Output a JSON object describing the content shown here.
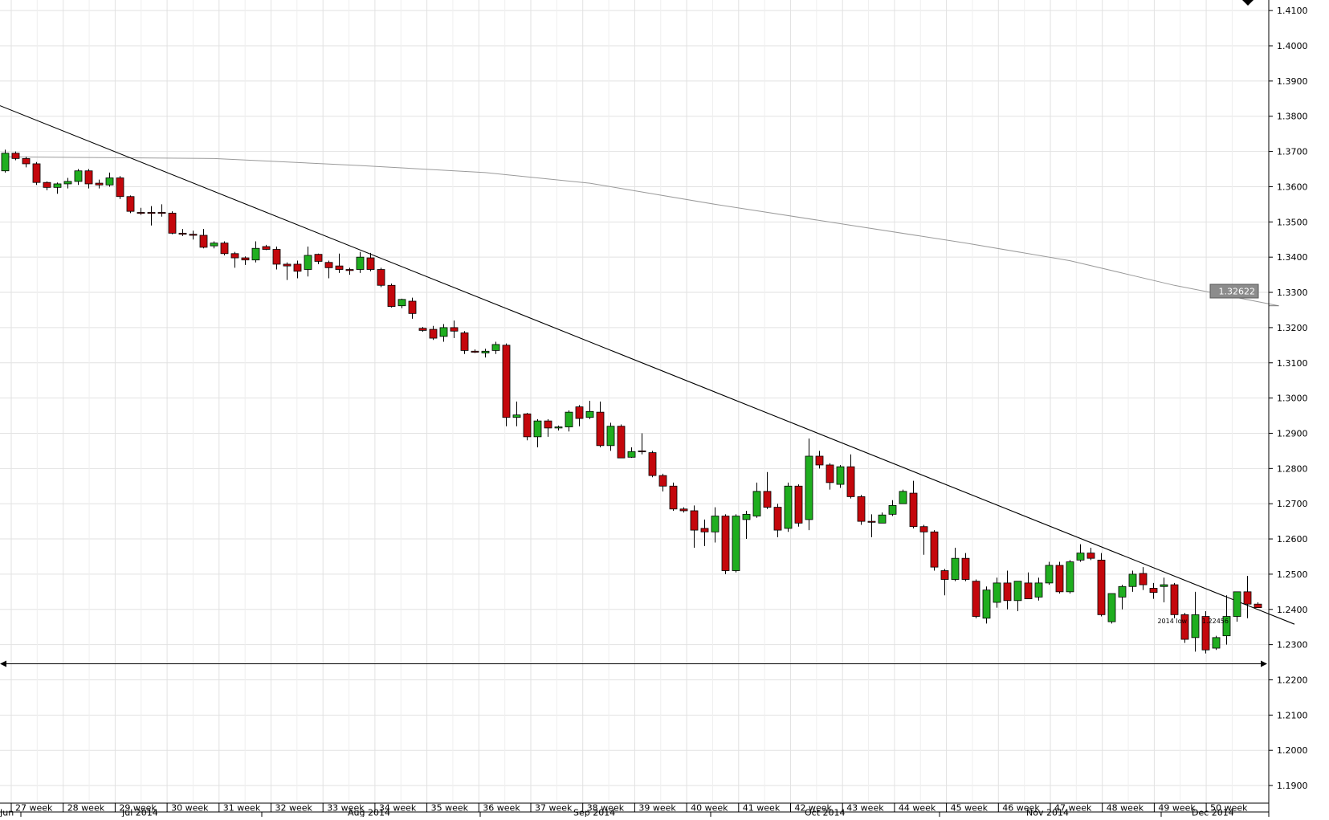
{
  "chart_data": {
    "type": "candlestick",
    "instrument_price_tag": "1.32622",
    "y_axis": {
      "min": 1.185,
      "max": 1.413,
      "ticks": [
        "1.1900",
        "1.2000",
        "1.2100",
        "1.2200",
        "1.2300",
        "1.2400",
        "1.2500",
        "1.2600",
        "1.2700",
        "1.2800",
        "1.2900",
        "1.3000",
        "1.3100",
        "1.3200",
        "1.3300",
        "1.3400",
        "1.3500",
        "1.3600",
        "1.3700",
        "1.3800",
        "1.3900",
        "1.4000",
        "1.4100"
      ]
    },
    "x_axis": {
      "week_labels": [
        "27 week",
        "28 week",
        "29 week",
        "30 week",
        "31 week",
        "32 week",
        "33 week",
        "34 week",
        "35 week",
        "36 week",
        "37 week",
        "38 week",
        "39 week",
        "40 week",
        "41 week",
        "42 week",
        "43 week",
        "44 week",
        "45 week",
        "46 week",
        "47 week",
        "48 week",
        "49 week",
        "50 week"
      ],
      "month_labels": [
        "Jun",
        "Jul 2014",
        "Aug 2014",
        "Sep 2014",
        "Oct 2014",
        "Nov 2014",
        "Dec 2014"
      ]
    },
    "candles": [
      {
        "o": 1.3645,
        "h": 1.3705,
        "l": 1.364,
        "c": 1.3695
      },
      {
        "o": 1.3695,
        "h": 1.37,
        "l": 1.3675,
        "c": 1.368
      },
      {
        "o": 1.368,
        "h": 1.3685,
        "l": 1.3655,
        "c": 1.3665
      },
      {
        "o": 1.3665,
        "h": 1.367,
        "l": 1.3605,
        "c": 1.3612
      },
      {
        "o": 1.3612,
        "h": 1.3615,
        "l": 1.359,
        "c": 1.3598
      },
      {
        "o": 1.3598,
        "h": 1.3612,
        "l": 1.358,
        "c": 1.3608
      },
      {
        "o": 1.3608,
        "h": 1.3625,
        "l": 1.3595,
        "c": 1.3615
      },
      {
        "o": 1.3615,
        "h": 1.365,
        "l": 1.3605,
        "c": 1.3645
      },
      {
        "o": 1.3645,
        "h": 1.365,
        "l": 1.3595,
        "c": 1.3608
      },
      {
        "o": 1.361,
        "h": 1.362,
        "l": 1.3595,
        "c": 1.3605
      },
      {
        "o": 1.3605,
        "h": 1.364,
        "l": 1.36,
        "c": 1.3625
      },
      {
        "o": 1.3625,
        "h": 1.363,
        "l": 1.3565,
        "c": 1.3572
      },
      {
        "o": 1.3572,
        "h": 1.3575,
        "l": 1.3525,
        "c": 1.353
      },
      {
        "o": 1.3527,
        "h": 1.354,
        "l": 1.352,
        "c": 1.3525
      },
      {
        "o": 1.3527,
        "h": 1.3545,
        "l": 1.349,
        "c": 1.3525
      },
      {
        "o": 1.3527,
        "h": 1.355,
        "l": 1.3515,
        "c": 1.3525
      },
      {
        "o": 1.3525,
        "h": 1.353,
        "l": 1.3465,
        "c": 1.3468
      },
      {
        "o": 1.3468,
        "h": 1.348,
        "l": 1.346,
        "c": 1.3465
      },
      {
        "o": 1.3465,
        "h": 1.3475,
        "l": 1.345,
        "c": 1.3462
      },
      {
        "o": 1.3462,
        "h": 1.348,
        "l": 1.3425,
        "c": 1.3428
      },
      {
        "o": 1.3432,
        "h": 1.3445,
        "l": 1.3425,
        "c": 1.344
      },
      {
        "o": 1.344,
        "h": 1.3445,
        "l": 1.3405,
        "c": 1.341
      },
      {
        "o": 1.341,
        "h": 1.3415,
        "l": 1.337,
        "c": 1.3398
      },
      {
        "o": 1.3398,
        "h": 1.3402,
        "l": 1.3378,
        "c": 1.3392
      },
      {
        "o": 1.3392,
        "h": 1.3445,
        "l": 1.3385,
        "c": 1.3425
      },
      {
        "o": 1.343,
        "h": 1.3435,
        "l": 1.342,
        "c": 1.3422
      },
      {
        "o": 1.3422,
        "h": 1.343,
        "l": 1.3365,
        "c": 1.338
      },
      {
        "o": 1.338,
        "h": 1.3385,
        "l": 1.3335,
        "c": 1.3375
      },
      {
        "o": 1.338,
        "h": 1.339,
        "l": 1.334,
        "c": 1.336
      },
      {
        "o": 1.3365,
        "h": 1.343,
        "l": 1.3345,
        "c": 1.3405
      },
      {
        "o": 1.3408,
        "h": 1.341,
        "l": 1.338,
        "c": 1.3388
      },
      {
        "o": 1.3385,
        "h": 1.339,
        "l": 1.334,
        "c": 1.337
      },
      {
        "o": 1.3375,
        "h": 1.341,
        "l": 1.3355,
        "c": 1.3365
      },
      {
        "o": 1.3365,
        "h": 1.337,
        "l": 1.335,
        "c": 1.3362
      },
      {
        "o": 1.3365,
        "h": 1.3415,
        "l": 1.3355,
        "c": 1.34
      },
      {
        "o": 1.3398,
        "h": 1.3412,
        "l": 1.336,
        "c": 1.3365
      },
      {
        "o": 1.3365,
        "h": 1.337,
        "l": 1.3315,
        "c": 1.332
      },
      {
        "o": 1.332,
        "h": 1.3325,
        "l": 1.3257,
        "c": 1.326
      },
      {
        "o": 1.3262,
        "h": 1.3282,
        "l": 1.3255,
        "c": 1.328
      },
      {
        "o": 1.3275,
        "h": 1.3285,
        "l": 1.3225,
        "c": 1.324
      },
      {
        "o": 1.3198,
        "h": 1.3202,
        "l": 1.3188,
        "c": 1.3192
      },
      {
        "o": 1.3195,
        "h": 1.3205,
        "l": 1.3165,
        "c": 1.317
      },
      {
        "o": 1.3175,
        "h": 1.321,
        "l": 1.316,
        "c": 1.32
      },
      {
        "o": 1.32,
        "h": 1.322,
        "l": 1.317,
        "c": 1.319
      },
      {
        "o": 1.3185,
        "h": 1.319,
        "l": 1.3125,
        "c": 1.3135
      },
      {
        "o": 1.3133,
        "h": 1.3138,
        "l": 1.3128,
        "c": 1.313
      },
      {
        "o": 1.3128,
        "h": 1.314,
        "l": 1.3115,
        "c": 1.3133
      },
      {
        "o": 1.3135,
        "h": 1.316,
        "l": 1.3125,
        "c": 1.3152
      },
      {
        "o": 1.315,
        "h": 1.3155,
        "l": 1.292,
        "c": 1.2945
      },
      {
        "o": 1.2945,
        "h": 1.299,
        "l": 1.292,
        "c": 1.2952
      },
      {
        "o": 1.2955,
        "h": 1.2958,
        "l": 1.288,
        "c": 1.289
      },
      {
        "o": 1.289,
        "h": 1.294,
        "l": 1.286,
        "c": 1.2935
      },
      {
        "o": 1.2935,
        "h": 1.294,
        "l": 1.289,
        "c": 1.2915
      },
      {
        "o": 1.2915,
        "h": 1.2922,
        "l": 1.2908,
        "c": 1.2918
      },
      {
        "o": 1.2918,
        "h": 1.2965,
        "l": 1.2905,
        "c": 1.296
      },
      {
        "o": 1.2975,
        "h": 1.298,
        "l": 1.292,
        "c": 1.2942
      },
      {
        "o": 1.2945,
        "h": 1.2992,
        "l": 1.294,
        "c": 1.2962
      },
      {
        "o": 1.296,
        "h": 1.299,
        "l": 1.286,
        "c": 1.2865
      },
      {
        "o": 1.2865,
        "h": 1.293,
        "l": 1.285,
        "c": 1.292
      },
      {
        "o": 1.292,
        "h": 1.2925,
        "l": 1.283,
        "c": 1.283
      },
      {
        "o": 1.2832,
        "h": 1.286,
        "l": 1.283,
        "c": 1.2848
      },
      {
        "o": 1.285,
        "h": 1.29,
        "l": 1.284,
        "c": 1.2848
      },
      {
        "o": 1.2845,
        "h": 1.285,
        "l": 1.2775,
        "c": 1.278
      },
      {
        "o": 1.278,
        "h": 1.2785,
        "l": 1.2735,
        "c": 1.275
      },
      {
        "o": 1.275,
        "h": 1.276,
        "l": 1.268,
        "c": 1.2685
      },
      {
        "o": 1.2685,
        "h": 1.269,
        "l": 1.2675,
        "c": 1.268
      },
      {
        "o": 1.268,
        "h": 1.2695,
        "l": 1.2575,
        "c": 1.2625
      },
      {
        "o": 1.263,
        "h": 1.2655,
        "l": 1.258,
        "c": 1.262
      },
      {
        "o": 1.262,
        "h": 1.269,
        "l": 1.259,
        "c": 1.2665
      },
      {
        "o": 1.2665,
        "h": 1.267,
        "l": 1.25,
        "c": 1.251
      },
      {
        "o": 1.251,
        "h": 1.267,
        "l": 1.2505,
        "c": 1.2665
      },
      {
        "o": 1.2655,
        "h": 1.268,
        "l": 1.26,
        "c": 1.267
      },
      {
        "o": 1.2665,
        "h": 1.276,
        "l": 1.266,
        "c": 1.2735
      },
      {
        "o": 1.2735,
        "h": 1.279,
        "l": 1.2685,
        "c": 1.269
      },
      {
        "o": 1.269,
        "h": 1.27,
        "l": 1.2605,
        "c": 1.2625
      },
      {
        "o": 1.263,
        "h": 1.276,
        "l": 1.262,
        "c": 1.275
      },
      {
        "o": 1.275,
        "h": 1.2755,
        "l": 1.2635,
        "c": 1.2645
      },
      {
        "o": 1.2655,
        "h": 1.2885,
        "l": 1.2625,
        "c": 1.2835
      },
      {
        "o": 1.2835,
        "h": 1.285,
        "l": 1.28,
        "c": 1.281
      },
      {
        "o": 1.281,
        "h": 1.2815,
        "l": 1.274,
        "c": 1.276
      },
      {
        "o": 1.2755,
        "h": 1.281,
        "l": 1.2745,
        "c": 1.2805
      },
      {
        "o": 1.2805,
        "h": 1.284,
        "l": 1.2715,
        "c": 1.272
      },
      {
        "o": 1.272,
        "h": 1.2725,
        "l": 1.264,
        "c": 1.265
      },
      {
        "o": 1.265,
        "h": 1.267,
        "l": 1.2605,
        "c": 1.2648
      },
      {
        "o": 1.2645,
        "h": 1.2675,
        "l": 1.2645,
        "c": 1.2668
      },
      {
        "o": 1.267,
        "h": 1.271,
        "l": 1.2665,
        "c": 1.2695
      },
      {
        "o": 1.27,
        "h": 1.274,
        "l": 1.27,
        "c": 1.2735
      },
      {
        "o": 1.273,
        "h": 1.2765,
        "l": 1.263,
        "c": 1.2635
      },
      {
        "o": 1.2635,
        "h": 1.264,
        "l": 1.2555,
        "c": 1.262
      },
      {
        "o": 1.262,
        "h": 1.2625,
        "l": 1.251,
        "c": 1.252
      },
      {
        "o": 1.251,
        "h": 1.2515,
        "l": 1.244,
        "c": 1.2485
      },
      {
        "o": 1.2485,
        "h": 1.2575,
        "l": 1.248,
        "c": 1.2545
      },
      {
        "o": 1.2545,
        "h": 1.256,
        "l": 1.248,
        "c": 1.2485
      },
      {
        "o": 1.248,
        "h": 1.2485,
        "l": 1.2375,
        "c": 1.238
      },
      {
        "o": 1.2375,
        "h": 1.2465,
        "l": 1.236,
        "c": 1.2455
      },
      {
        "o": 1.242,
        "h": 1.249,
        "l": 1.2405,
        "c": 1.2475
      },
      {
        "o": 1.2475,
        "h": 1.251,
        "l": 1.24,
        "c": 1.2425
      },
      {
        "o": 1.2425,
        "h": 1.248,
        "l": 1.2395,
        "c": 1.248
      },
      {
        "o": 1.2475,
        "h": 1.2505,
        "l": 1.243,
        "c": 1.243
      },
      {
        "o": 1.2435,
        "h": 1.249,
        "l": 1.2425,
        "c": 1.2475
      },
      {
        "o": 1.2475,
        "h": 1.2535,
        "l": 1.247,
        "c": 1.2525
      },
      {
        "o": 1.2525,
        "h": 1.2535,
        "l": 1.2445,
        "c": 1.245
      },
      {
        "o": 1.245,
        "h": 1.254,
        "l": 1.2445,
        "c": 1.2535
      },
      {
        "o": 1.254,
        "h": 1.2585,
        "l": 1.2535,
        "c": 1.256
      },
      {
        "o": 1.256,
        "h": 1.2575,
        "l": 1.254,
        "c": 1.2545
      },
      {
        "o": 1.254,
        "h": 1.256,
        "l": 1.238,
        "c": 1.2385
      },
      {
        "o": 1.2365,
        "h": 1.2445,
        "l": 1.236,
        "c": 1.2445
      },
      {
        "o": 1.2435,
        "h": 1.247,
        "l": 1.24,
        "c": 1.2465
      },
      {
        "o": 1.2465,
        "h": 1.251,
        "l": 1.245,
        "c": 1.25
      },
      {
        "o": 1.2502,
        "h": 1.252,
        "l": 1.2455,
        "c": 1.247
      },
      {
        "o": 1.246,
        "h": 1.2475,
        "l": 1.243,
        "c": 1.2448
      },
      {
        "o": 1.2465,
        "h": 1.249,
        "l": 1.242,
        "c": 1.247
      },
      {
        "o": 1.247,
        "h": 1.2475,
        "l": 1.2375,
        "c": 1.2385
      },
      {
        "o": 1.2385,
        "h": 1.239,
        "l": 1.2305,
        "c": 1.2315
      },
      {
        "o": 1.232,
        "h": 1.245,
        "l": 1.228,
        "c": 1.2385
      },
      {
        "o": 1.238,
        "h": 1.2395,
        "l": 1.2275,
        "c": 1.2285
      },
      {
        "o": 1.229,
        "h": 1.2325,
        "l": 1.2285,
        "c": 1.232
      },
      {
        "o": 1.2325,
        "h": 1.244,
        "l": 1.23,
        "c": 1.238
      },
      {
        "o": 1.238,
        "h": 1.2445,
        "l": 1.2365,
        "c": 1.245
      },
      {
        "o": 1.245,
        "h": 1.2495,
        "l": 1.2375,
        "c": 1.2415
      },
      {
        "o": 1.2415,
        "h": 1.242,
        "l": 1.2405,
        "c": 1.2405
      }
    ],
    "moving_average": [
      {
        "i": 0,
        "v": 1.3685
      },
      {
        "i": 20,
        "v": 1.368
      },
      {
        "i": 34,
        "v": 1.366
      },
      {
        "i": 46,
        "v": 1.364
      },
      {
        "i": 56,
        "v": 1.361
      },
      {
        "i": 68,
        "v": 1.355
      },
      {
        "i": 80,
        "v": 1.3495
      },
      {
        "i": 92,
        "v": 1.344
      },
      {
        "i": 102,
        "v": 1.339
      },
      {
        "i": 112,
        "v": 1.332
      },
      {
        "i": 122,
        "v": 1.3262
      }
    ],
    "trendline": {
      "from": {
        "i": -0.5,
        "v": 1.383
      },
      "to": {
        "i": 123.5,
        "v": 1.2358
      }
    },
    "support_line": {
      "value": 1.22456,
      "label": "2014 low",
      "value_label": "1.22456"
    }
  }
}
